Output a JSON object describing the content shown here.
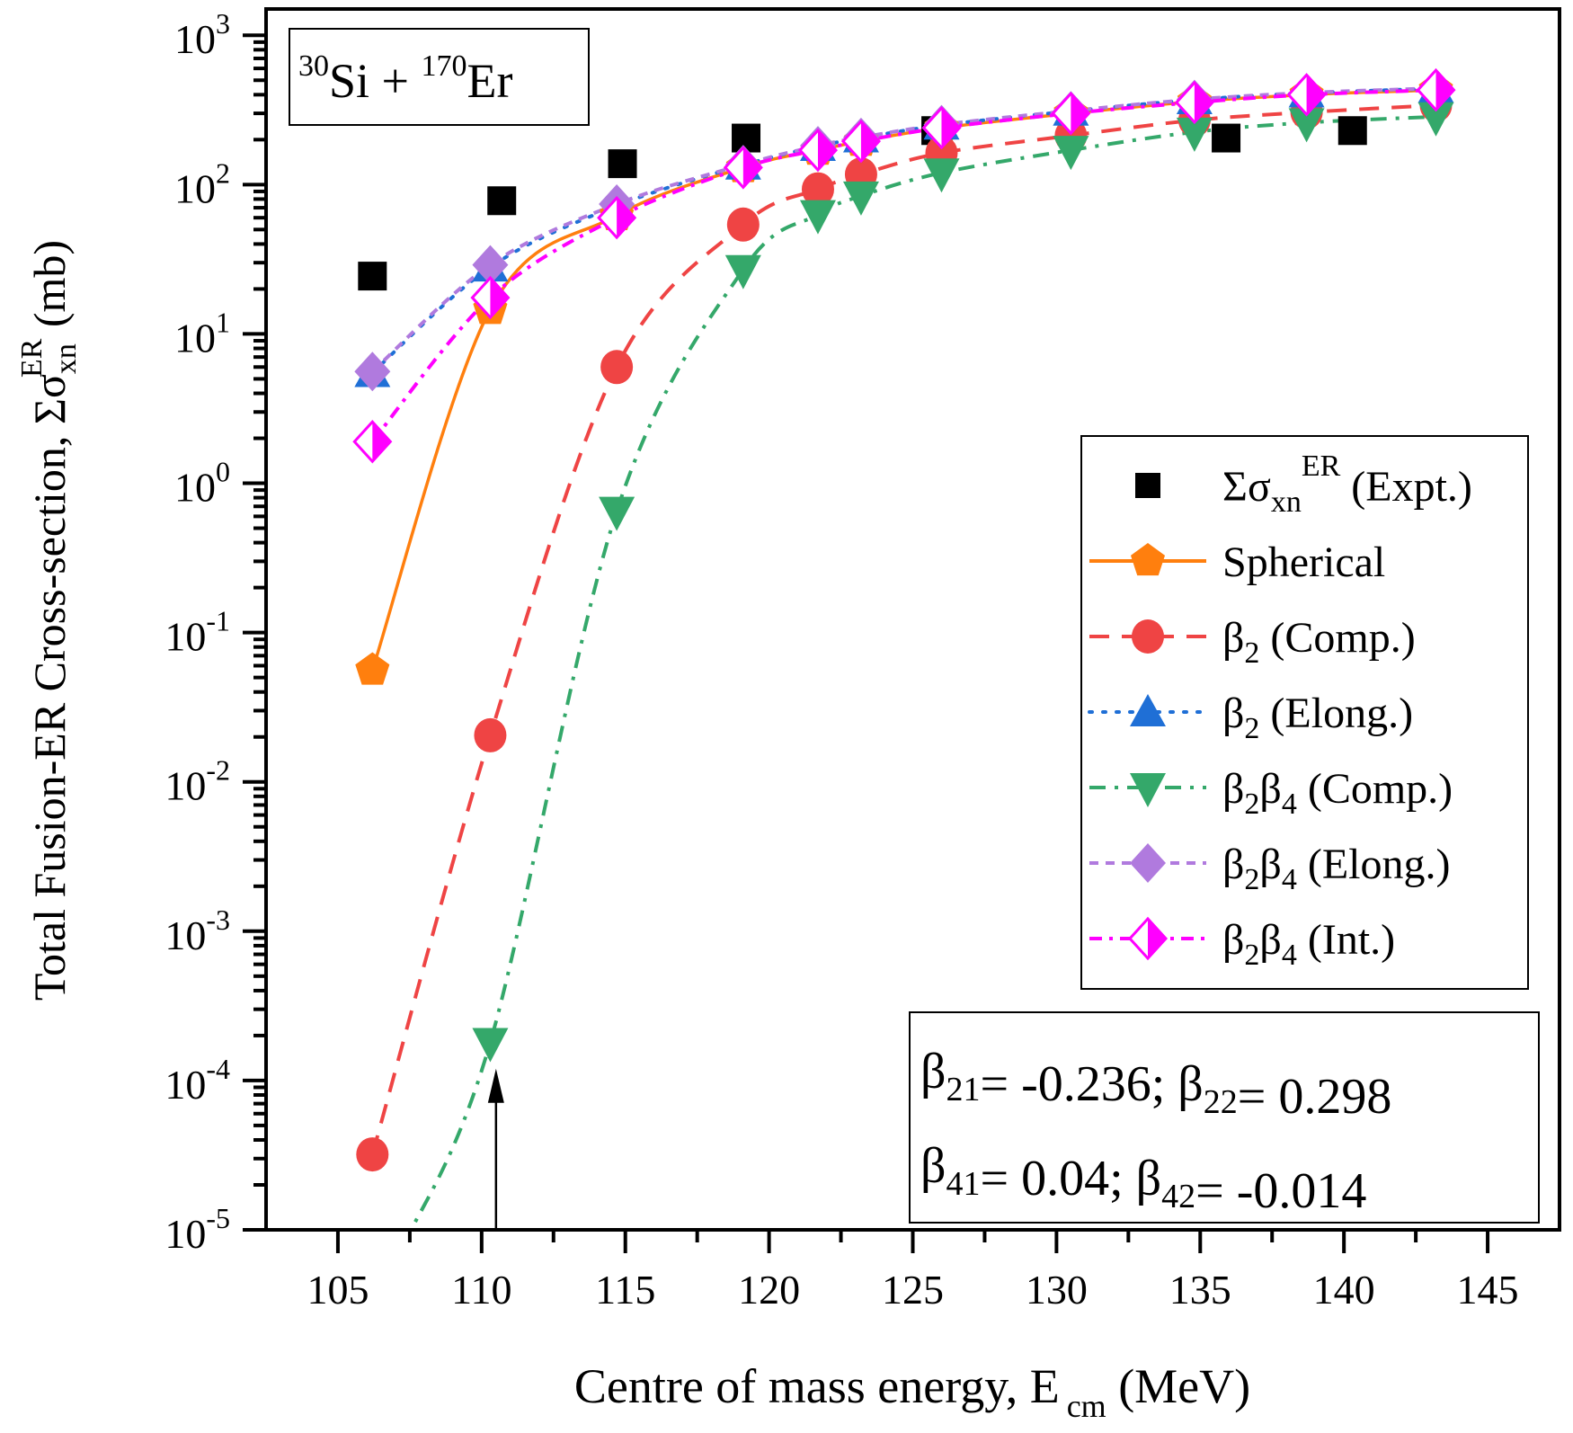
{
  "chart_data": {
    "type": "line",
    "title": "",
    "system_label": {
      "mass1": "30",
      "el1": "Si",
      "plus": " + ",
      "mass2": "170",
      "el2": "Er"
    },
    "xlabel": {
      "main": "Centre of mass energy, E",
      "sub": "cm",
      "unit": " (MeV)"
    },
    "ylabel": {
      "main": "Total Fusion-ER Cross-section,  Σσ",
      "sub": "xn",
      "sup": "ER",
      "unit": " (mb)"
    },
    "xlim": [
      102.5,
      147.5
    ],
    "ylim": [
      1e-05,
      1500
    ],
    "yscale": "log",
    "xticks": [
      105,
      110,
      115,
      120,
      125,
      130,
      135,
      140,
      145
    ],
    "xtick_labels": [
      "105",
      "110",
      "115",
      "120",
      "125",
      "130",
      "135",
      "140",
      "145"
    ],
    "yticks": [
      {
        "base": "10",
        "exp": "-5",
        "value": 1e-05
      },
      {
        "base": "10",
        "exp": "-4",
        "value": 0.0001
      },
      {
        "base": "10",
        "exp": "-3",
        "value": 0.001
      },
      {
        "base": "10",
        "exp": "-2",
        "value": 0.01
      },
      {
        "base": "10",
        "exp": "-1",
        "value": 0.1
      },
      {
        "base": "10",
        "exp": "0",
        "value": 1
      },
      {
        "base": "10",
        "exp": "1",
        "value": 10
      },
      {
        "base": "10",
        "exp": "2",
        "value": 100
      },
      {
        "base": "10",
        "exp": "3",
        "value": 1000
      }
    ],
    "grid": false,
    "legend_position": "right",
    "series": [
      {
        "name": "Σσxn ER (Expt.)",
        "legend": {
          "main": "Σσ",
          "sub": "xn",
          "sup": "ER",
          "rest": " (Expt.)"
        },
        "color": "#000000",
        "marker": "square",
        "line": "none",
        "x": [
          106.2,
          110.7,
          114.9,
          119.2,
          125.8,
          135.9,
          140.3
        ],
        "y": [
          24.4,
          78,
          138,
          205,
          230,
          205,
          230
        ]
      },
      {
        "name": "Spherical",
        "legend": {
          "main": "Spherical",
          "sub": "",
          "sup": "",
          "rest": ""
        },
        "color": "#ff7f0e",
        "marker": "pentagon",
        "line": "solid",
        "x": [
          106.2,
          110.3,
          114.7,
          119.1,
          121.7,
          123.2,
          126.0,
          130.5,
          134.8,
          138.7,
          143.2
        ],
        "y": [
          0.056,
          14.6,
          62,
          130,
          170,
          195,
          240,
          300,
          360,
          400,
          430
        ]
      },
      {
        "name": "β2 (Comp.)",
        "legend": {
          "main": "β",
          "sub": "2",
          "sup": "",
          "rest": " (Comp.)"
        },
        "color": "#ef4444",
        "marker": "circle",
        "line": "dashed",
        "x": [
          106.2,
          110.3,
          114.7,
          119.1,
          121.7,
          123.2,
          126.0,
          130.5,
          134.8,
          138.7,
          143.2
        ],
        "y": [
          3.2e-05,
          0.0205,
          6.0,
          54,
          93,
          117,
          163,
          213,
          270,
          305,
          340
        ]
      },
      {
        "name": "β2 (Elong.)",
        "legend": {
          "main": "β",
          "sub": "2",
          "sup": "",
          "rest": " (Elong.)"
        },
        "color": "#1f6fd6",
        "marker": "triangle-up",
        "line": "dotted",
        "x": [
          106.2,
          110.3,
          114.7,
          119.1,
          121.7,
          123.2,
          126.0,
          130.5,
          134.8,
          138.7,
          143.2
        ],
        "y": [
          5.5,
          28,
          72,
          135,
          180,
          205,
          250,
          310,
          370,
          410,
          440
        ]
      },
      {
        "name": "β2β4 (Comp.)",
        "legend": {
          "main": "β",
          "sub": "2",
          "sup": "",
          "rest": "β",
          "sub2": "4",
          "rest2": " (Comp.)"
        },
        "color": "#34a86a",
        "marker": "triangle-down",
        "line": "dashdot",
        "x": [
          110.3,
          114.7,
          119.1,
          121.7,
          123.2,
          126.0,
          130.5,
          134.8,
          138.7,
          143.2
        ],
        "y": [
          0.00018,
          0.65,
          27,
          63,
          84,
          120,
          170,
          225,
          260,
          285
        ]
      },
      {
        "name": "β2β4 (Elong.)",
        "legend": {
          "main": "β",
          "sub": "2",
          "sup": "",
          "rest": "β",
          "sub2": "4",
          "rest2": " (Elong.)"
        },
        "color": "#b07ade",
        "marker": "diamond",
        "line": "shortdash",
        "x": [
          106.2,
          110.3,
          114.7,
          119.1,
          121.7,
          123.2,
          126.0,
          130.5,
          134.8,
          138.7,
          143.2
        ],
        "y": [
          5.6,
          29,
          74,
          136,
          182,
          207,
          252,
          312,
          372,
          412,
          442
        ]
      },
      {
        "name": "β2β4 (Int.)",
        "legend": {
          "main": "β",
          "sub": "2",
          "sup": "",
          "rest": "β",
          "sub2": "4",
          "rest2": " (Int.)"
        },
        "color": "#ff00ff",
        "marker": "half-diamond",
        "line": "dashdotdot",
        "x": [
          106.2,
          110.3,
          114.7,
          119.1,
          121.7,
          123.2,
          126.0,
          130.5,
          134.8,
          138.7,
          143.2
        ],
        "y": [
          1.9,
          17.5,
          60,
          130,
          170,
          195,
          240,
          300,
          355,
          400,
          430
        ]
      }
    ],
    "annotations": {
      "arrow": {
        "x": 110.5,
        "y_from": 1e-05,
        "y_to": 0.00012
      },
      "params_line1": [
        {
          "t": "β",
          "sub": "21"
        },
        {
          "t": "= -0.236;  β",
          "sub": "22"
        },
        {
          "t": "= 0.298",
          "sub": ""
        }
      ],
      "params_line2": [
        {
          "t": "β",
          "sub": "41"
        },
        {
          "t": "= 0.04;  β",
          "sub": "42"
        },
        {
          "t": "=  -0.014",
          "sub": ""
        }
      ]
    }
  }
}
